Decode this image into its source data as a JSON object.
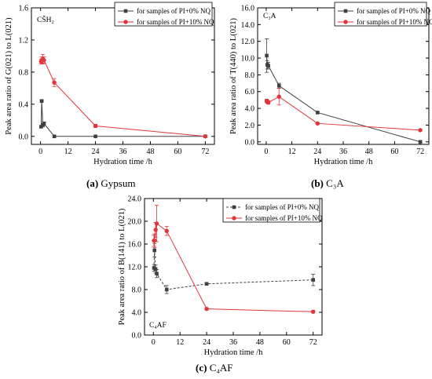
{
  "figure": {
    "captions": [
      {
        "label": "(a)",
        "text": "Gypsum"
      },
      {
        "label": "(b)",
        "text": "C₃A"
      },
      {
        "label": "(c)",
        "text": "C₄AF"
      }
    ]
  },
  "colors": {
    "series_0": "#404040",
    "series_1": "#e0353a"
  },
  "chart_data": [
    {
      "type": "line",
      "inner_label": "CŠH₂",
      "xlabel": "Hydration time /h",
      "ylabel": "Peak area ratio of G(021) to L(021)",
      "xlim": [
        -4,
        76
      ],
      "ylim": [
        -0.1,
        1.6
      ],
      "xticks": [
        0,
        12,
        24,
        36,
        48,
        60,
        72
      ],
      "yticks": [
        0.0,
        0.4,
        0.8,
        1.2,
        1.6
      ],
      "legend_position": "top-right",
      "series": [
        {
          "name": "for samples of PI+0% NQ",
          "marker": "square",
          "line": "solid",
          "x": [
            0.25,
            0.5,
            1,
            1.5,
            6,
            24,
            72
          ],
          "y": [
            0.12,
            0.44,
            0.14,
            0.16,
            0.0,
            0.0,
            0.0
          ],
          "err": [
            0.01,
            0.01,
            0.02,
            0.02,
            0.0,
            0.0,
            0.0
          ]
        },
        {
          "name": "for samples of PI+10% NQ",
          "marker": "circle",
          "line": "solid",
          "x": [
            0.25,
            0.5,
            1,
            1.5,
            6,
            24,
            72
          ],
          "y": [
            0.93,
            0.95,
            0.96,
            0.95,
            0.67,
            0.13,
            0.0
          ],
          "err": [
            0.03,
            0.04,
            0.06,
            0.04,
            0.05,
            0.02,
            0.0
          ]
        }
      ]
    },
    {
      "type": "line",
      "inner_label": "C₃A",
      "xlabel": "Hydration time /h",
      "ylabel": "Peak area ratio of T(440) to L(021)",
      "xlim": [
        -4,
        76
      ],
      "ylim": [
        -0.3,
        16.0
      ],
      "xticks": [
        0,
        12,
        24,
        36,
        48,
        60,
        72
      ],
      "yticks": [
        0.0,
        2.0,
        4.0,
        6.0,
        8.0,
        10.0,
        12.0,
        14.0,
        16.0
      ],
      "legend_position": "top-right",
      "series": [
        {
          "name": "for samples of PI+0% NQ",
          "marker": "square",
          "line": "solid",
          "x": [
            0.25,
            0.5,
            1,
            6,
            24,
            72
          ],
          "y": [
            10.3,
            9.2,
            9.1,
            6.7,
            3.5,
            0.0
          ],
          "err": [
            2.0,
            0.5,
            0.4,
            0.3,
            0.1,
            0.1
          ]
        },
        {
          "name": "for samples of PI+10% NQ",
          "marker": "circle",
          "line": "solid",
          "x": [
            0.25,
            0.5,
            1,
            6,
            24,
            72
          ],
          "y": [
            4.9,
            4.8,
            4.7,
            5.4,
            2.2,
            1.4
          ],
          "err": [
            0.2,
            0.2,
            0.2,
            1.0,
            0.1,
            0.1
          ]
        }
      ]
    },
    {
      "type": "line",
      "inner_label": "C₄AF",
      "xlabel": "Hydration time /h",
      "ylabel": "Peak area ratio of B(141) to L(021)",
      "xlim": [
        -4,
        76
      ],
      "ylim": [
        0,
        24.0
      ],
      "xticks": [
        0,
        12,
        24,
        36,
        48,
        60,
        72
      ],
      "yticks": [
        0.0,
        4.0,
        8.0,
        12.0,
        16.0,
        20.0,
        24.0
      ],
      "legend_position": "top-right",
      "series": [
        {
          "name": "for samples of PI+0% NQ",
          "marker": "square",
          "line": "dashed",
          "x": [
            0.25,
            0.5,
            1,
            1.5,
            6,
            24,
            72
          ],
          "y": [
            11.8,
            14.9,
            11.6,
            10.8,
            8.0,
            9.0,
            9.7
          ],
          "err": [
            0.6,
            1.2,
            0.7,
            0.7,
            0.7,
            0.2,
            1.0
          ]
        },
        {
          "name": "for samples of PI+10% NQ",
          "marker": "circle",
          "line": "solid",
          "x": [
            0.25,
            0.5,
            1,
            1.5,
            6,
            24,
            72
          ],
          "y": [
            16.6,
            16.6,
            18.5,
            19.6,
            18.3,
            4.6,
            4.1
          ],
          "err": [
            1.0,
            1.2,
            1.3,
            3.2,
            0.8,
            0.2,
            0.2
          ]
        }
      ]
    }
  ]
}
